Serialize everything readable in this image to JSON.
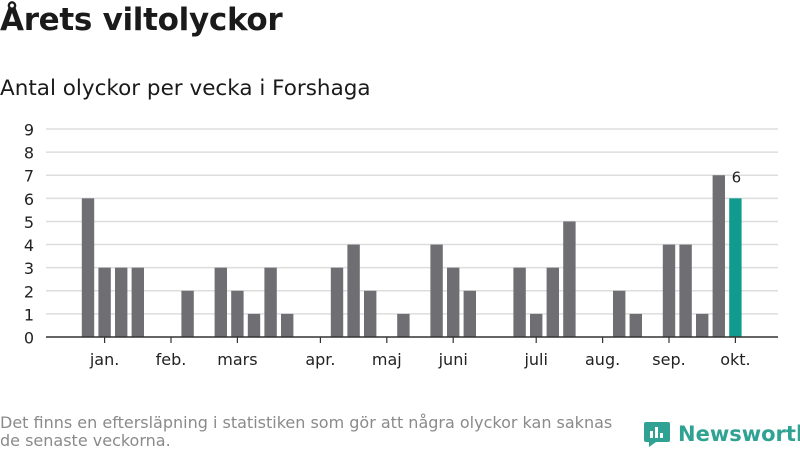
{
  "title": "Årets viltolyckor",
  "subtitle": "Antal olyckor per vecka i Forshaga",
  "footnote": "Det finns en eftersläpning i statistiken som gör att några olyckor kan saknas de senaste veckorna.",
  "brand": {
    "name": "Newsworthy",
    "icon": "newsworthy-logo-icon",
    "color": "#2fa293"
  },
  "colors": {
    "bar": "#6f6e73",
    "highlight": "#109b8e",
    "grid": "#dddddd",
    "axis": "#333333"
  },
  "chart_data": {
    "type": "bar",
    "title": "Årets viltolyckor",
    "subtitle": "Antal olyckor per vecka i Forshaga",
    "ylim": [
      0,
      9
    ],
    "yticks": [
      0,
      1,
      2,
      3,
      4,
      5,
      6,
      7,
      8,
      9
    ],
    "grid": true,
    "x_month_labels": [
      {
        "label": "jan.",
        "week": 2
      },
      {
        "label": "feb.",
        "week": 6
      },
      {
        "label": "mars",
        "week": 10
      },
      {
        "label": "apr.",
        "week": 15
      },
      {
        "label": "maj",
        "week": 19
      },
      {
        "label": "juni",
        "week": 23
      },
      {
        "label": "juli",
        "week": 28
      },
      {
        "label": "aug.",
        "week": 32
      },
      {
        "label": "sep.",
        "week": 36
      },
      {
        "label": "okt.",
        "week": 40
      }
    ],
    "weeks": [
      1,
      2,
      3,
      4,
      5,
      6,
      7,
      8,
      9,
      10,
      11,
      12,
      13,
      14,
      15,
      16,
      17,
      18,
      19,
      20,
      21,
      22,
      23,
      24,
      25,
      26,
      27,
      28,
      29,
      30,
      31,
      32,
      33,
      34,
      35,
      36,
      37,
      38,
      39,
      40
    ],
    "values": [
      6,
      3,
      3,
      3,
      0,
      0,
      2,
      0,
      3,
      2,
      1,
      3,
      1,
      0,
      0,
      3,
      4,
      2,
      0,
      1,
      0,
      4,
      3,
      2,
      0,
      0,
      3,
      1,
      3,
      5,
      0,
      0,
      2,
      1,
      0,
      4,
      4,
      1,
      7,
      6
    ],
    "highlight_index": 39,
    "data_labels": [
      {
        "index": 39,
        "text": "6"
      }
    ]
  }
}
